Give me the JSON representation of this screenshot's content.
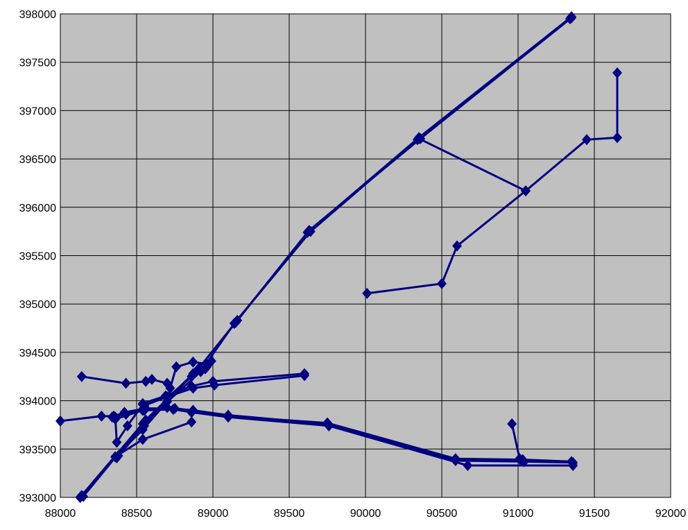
{
  "chart_data": {
    "type": "scatter",
    "title": "",
    "xlabel": "",
    "ylabel": "",
    "xlim": [
      88000,
      92000
    ],
    "ylim": [
      393000,
      398000
    ],
    "x_ticks": [
      88000,
      88500,
      89000,
      89500,
      90000,
      90500,
      91000,
      91500,
      92000
    ],
    "y_ticks": [
      393000,
      393500,
      394000,
      394500,
      395000,
      395500,
      396000,
      396500,
      397000,
      397500,
      398000
    ],
    "x_tick_labels": [
      "88000",
      "88500",
      "89000",
      "89500",
      "90000",
      "90500",
      "91000",
      "91500",
      "92000"
    ],
    "y_tick_labels": [
      "393000",
      "393500",
      "394000",
      "394500",
      "395000",
      "395500",
      "396000",
      "396500",
      "397000",
      "397500",
      "398000"
    ],
    "grid": true,
    "plot_background": "#c0c0c0",
    "line_color": "#000080",
    "marker": "diamond",
    "legend": "none",
    "series": [
      {
        "x": [
          88130,
          88550,
          88900,
          89150,
          89620,
          90350,
          91350
        ],
        "y": [
          393000,
          393780,
          394320,
          394810,
          395740,
          396720,
          397970
        ]
      },
      {
        "x": [
          88140,
          88560,
          88910,
          89160,
          89630,
          90360,
          91350
        ],
        "y": [
          393020,
          393800,
          394340,
          394830,
          395760,
          396710,
          397960
        ]
      },
      {
        "x": [
          88150,
          88540,
          88920,
          89140,
          89640,
          90340,
          91340
        ],
        "y": [
          393010,
          393760,
          394300,
          394800,
          395750,
          396700,
          397950
        ]
      },
      {
        "x": [
          88370,
          88540,
          88700,
          88860,
          88950
        ],
        "y": [
          393410,
          393720,
          394020,
          394250,
          394330
        ]
      },
      {
        "x": [
          88380,
          88550,
          88710,
          88870,
          88960
        ],
        "y": [
          393430,
          393740,
          394040,
          394270,
          394350
        ]
      },
      {
        "x": [
          88130,
          88360,
          88540,
          88700,
          88870,
          88990
        ],
        "y": [
          393000,
          393420,
          393700,
          393990,
          394280,
          394410
        ]
      },
      {
        "x": [
          88000,
          88270,
          88350,
          88430,
          88550,
          88740,
          88860,
          89100,
          89750,
          90590,
          91030,
          91350
        ],
        "y": [
          393790,
          393840,
          393840,
          393860,
          393900,
          393910,
          393880,
          393840,
          393770,
          393400,
          393390,
          393370
        ]
      },
      {
        "x": [
          88340,
          88420,
          88560,
          88750,
          88870,
          89100,
          89750,
          90590,
          91040,
          91360
        ],
        "y": [
          393830,
          393880,
          393920,
          393920,
          393900,
          393850,
          393760,
          393380,
          393370,
          393360
        ]
      },
      {
        "x": [
          88360,
          88540,
          88700,
          88860,
          89100,
          89760,
          90670,
          91360
        ],
        "y": [
          393810,
          393900,
          393930,
          393880,
          393830,
          393740,
          393330,
          393330
        ]
      },
      {
        "x": [
          88360,
          88370,
          88440,
          88540
        ],
        "y": [
          393830,
          393570,
          393740,
          393960
        ]
      },
      {
        "x": [
          88540,
          88690,
          88860,
          89000,
          89600
        ],
        "y": [
          393970,
          394050,
          394150,
          394200,
          394280
        ]
      },
      {
        "x": [
          88550,
          88700,
          88870,
          89010,
          89600
        ],
        "y": [
          393950,
          394040,
          394130,
          394160,
          394260
        ]
      },
      {
        "x": [
          88140,
          88430,
          88560,
          88600,
          88700
        ],
        "y": [
          394250,
          394180,
          394200,
          394220,
          394180
        ]
      },
      {
        "x": [
          88360,
          88540,
          88860
        ],
        "y": [
          393420,
          393600,
          393780
        ]
      },
      {
        "x": [
          88720,
          88760,
          88870,
          88960
        ],
        "y": [
          394130,
          394350,
          394400,
          394380
        ]
      },
      {
        "x": [
          90350,
          91050
        ],
        "y": [
          396710,
          396170
        ]
      },
      {
        "x": [
          90010,
          90500,
          90600,
          91050,
          91450,
          91650,
          91650
        ],
        "y": [
          395110,
          395210,
          395600,
          396170,
          396700,
          396720,
          397390
        ]
      },
      {
        "x": [
          90960,
          91010,
          91020
        ],
        "y": [
          393760,
          393400,
          393380
        ]
      }
    ]
  }
}
